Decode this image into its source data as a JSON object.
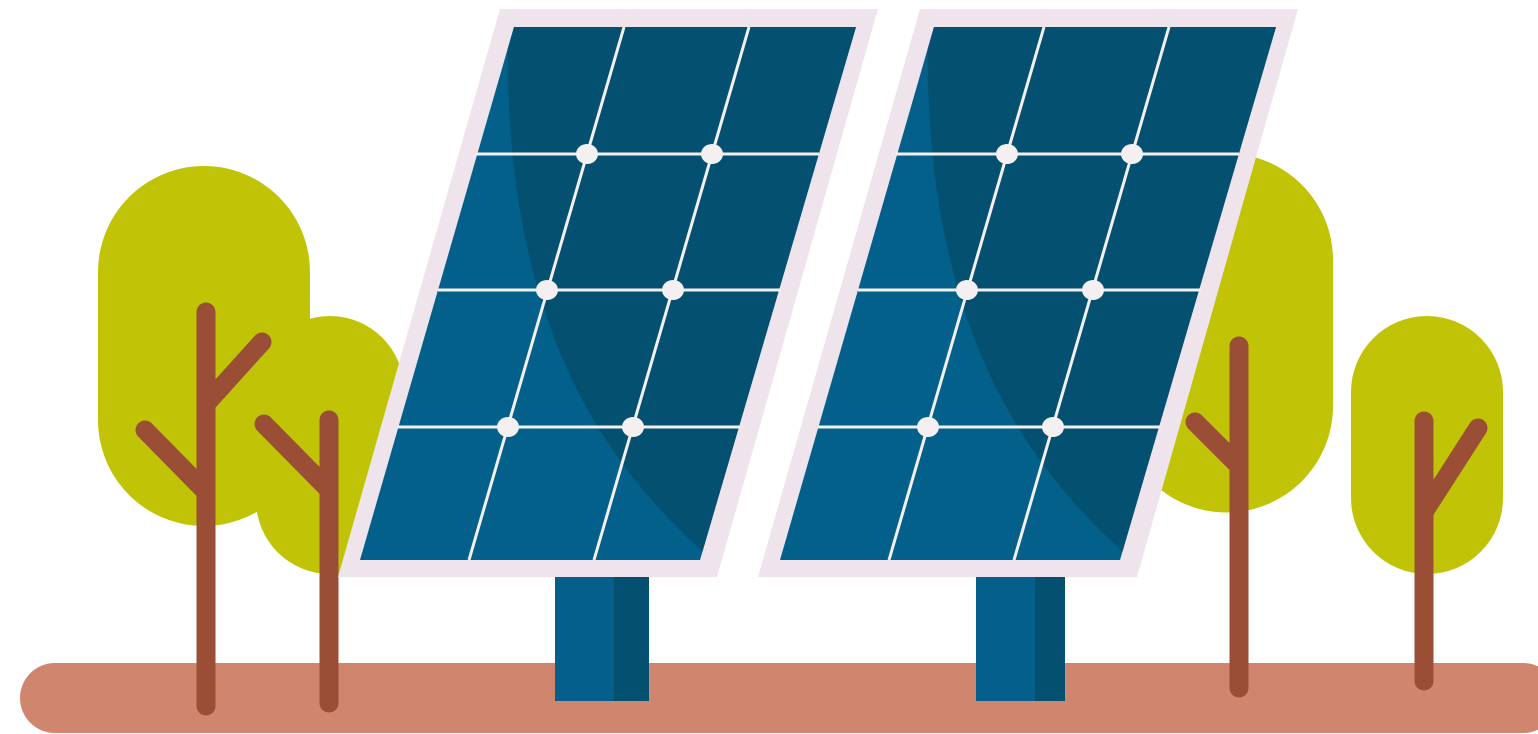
{
  "scene": {
    "subject": "solar-panels-illustration",
    "colors": {
      "background": "#ffffff",
      "ground": "#d0866e",
      "tree_canopy": "#c1c406",
      "trunk": "#9a4e36",
      "panel_frame": "#f0e4ec",
      "panel_dark": "#045070",
      "panel_light": "#03608a",
      "grid_line": "#f4f0f2",
      "pole_light": "#04608a",
      "pole_dark": "#045070"
    }
  }
}
